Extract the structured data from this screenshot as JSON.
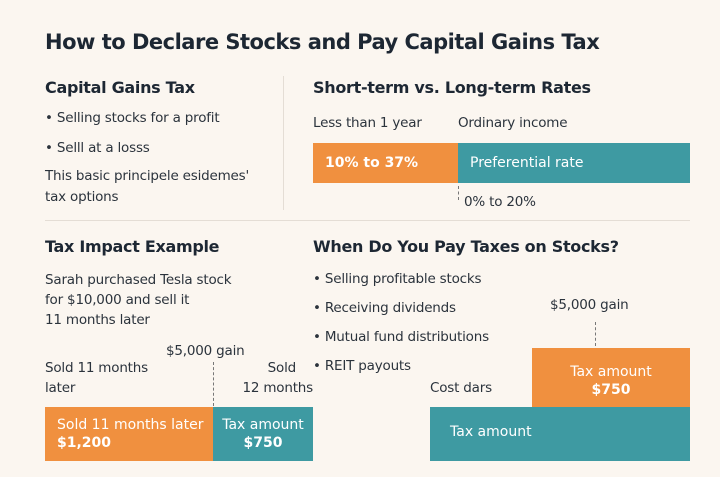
{
  "title": "How to Declare Stocks and Pay Capital Gains Tax",
  "capital_gains": {
    "heading": "Capital Gains Tax",
    "bullets": [
      "• Selling stocks for a profit",
      "• Selll at a losss"
    ],
    "note_lines": [
      "This basic principele esidemes'",
      "tax options"
    ]
  },
  "rates": {
    "heading": "Short-term vs. Long-term Rates",
    "label_short": "Less than 1 year",
    "label_long": "Ordinary income",
    "short_bar": "10% to 37%",
    "long_bar": "Preferential rate",
    "long_range": "0% to 20%"
  },
  "impact": {
    "heading": "Tax Impact Example",
    "desc_lines": [
      "Sarah purchased Tesla stock",
      "for $10,000 and sell it",
      "11 months later"
    ],
    "gain": "$5,000 gain",
    "left_label_lines": [
      "Sold 11 months",
      "later"
    ],
    "right_label_lines": [
      "Sold",
      "12 months"
    ],
    "orange_box": {
      "line1": "Sold 11 months later",
      "line2": "$1,200"
    },
    "teal_box": {
      "line1": "Tax amount",
      "line2": "$750"
    }
  },
  "when": {
    "heading": "When Do You Pay Taxes on Stocks?",
    "bullets": [
      "• Selling profitable stocks",
      "• Receiving dividends",
      "• Mutual fund distributions",
      "• REIT payouts"
    ],
    "gain": "$5,000 gain",
    "cost_label": "Cost dars",
    "orange_box": {
      "line1": "Tax amount",
      "line2": "$750"
    },
    "teal_box": "Tax amount"
  },
  "colors": {
    "orange": "#f0903f",
    "teal": "#3e9aa2",
    "background": "#fbf6f0"
  }
}
